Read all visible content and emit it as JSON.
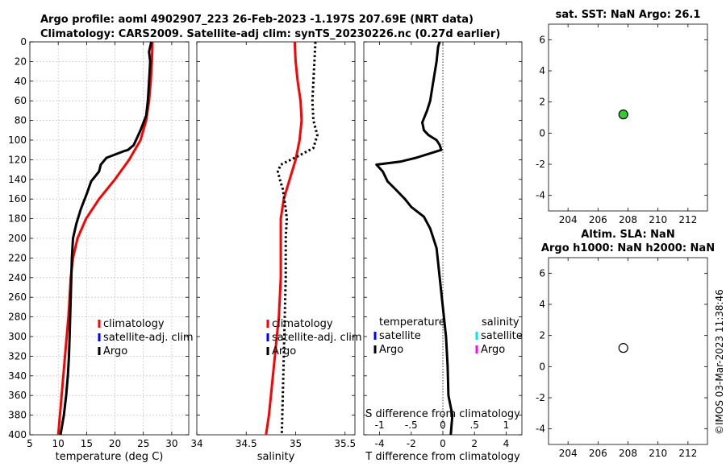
{
  "header": {
    "title_line1": "Argo profile: aoml 4902907_223 26-Feb-2023 -1.197S 207.69E (NRT data)",
    "title_line2": "Climatology: CARS2009. Satellite-adj clim: synTS_20230226.nc (0.27d earlier)"
  },
  "timestamp": "©IMOS 03-Mar-2023 11:38:46",
  "colors": {
    "climatology": "#ff0000",
    "satellite": "#0000ff",
    "argo": "#000000",
    "sat_salinity": "#00e5e5",
    "argo_salinity": "#ff00ff",
    "sst_marker": "#33cc33"
  },
  "chart_data": [
    {
      "type": "line",
      "id": "temperature",
      "xlabel": "temperature (deg C)",
      "xlim": [
        5,
        33
      ],
      "ylim": [
        0,
        400
      ],
      "xticks": [
        5,
        10,
        15,
        20,
        25,
        30
      ],
      "yticks": [
        0,
        20,
        40,
        60,
        80,
        100,
        120,
        140,
        160,
        180,
        200,
        220,
        240,
        260,
        280,
        300,
        320,
        340,
        360,
        380,
        400
      ],
      "legend": [
        "climatology",
        "satellite-adj. clim",
        "Argo"
      ],
      "series": [
        {
          "name": "climatology",
          "style": "solid",
          "color": "#ff0000",
          "points": [
            [
              26.6,
              0
            ],
            [
              26.5,
              20
            ],
            [
              26.3,
              40
            ],
            [
              26.0,
              60
            ],
            [
              25.5,
              80
            ],
            [
              24.5,
              100
            ],
            [
              22.5,
              120
            ],
            [
              20.0,
              140
            ],
            [
              17.2,
              160
            ],
            [
              14.9,
              180
            ],
            [
              13.4,
              200
            ],
            [
              12.6,
              220
            ],
            [
              12.2,
              240
            ],
            [
              12.0,
              260
            ],
            [
              11.8,
              280
            ],
            [
              11.5,
              300
            ],
            [
              11.2,
              320
            ],
            [
              10.9,
              340
            ],
            [
              10.6,
              360
            ],
            [
              10.3,
              380
            ],
            [
              10.0,
              400
            ]
          ]
        },
        {
          "name": "Argo",
          "style": "solid",
          "color": "#000000",
          "points": [
            [
              26.4,
              0
            ],
            [
              26.0,
              10
            ],
            [
              26.2,
              20
            ],
            [
              26.0,
              40
            ],
            [
              25.8,
              60
            ],
            [
              25.5,
              75
            ],
            [
              24.5,
              90
            ],
            [
              23.3,
              105
            ],
            [
              22.3,
              110
            ],
            [
              21.7,
              111
            ],
            [
              18.5,
              118
            ],
            [
              17.5,
              125
            ],
            [
              17.2,
              132
            ],
            [
              15.8,
              142
            ],
            [
              15.0,
              155
            ],
            [
              14.0,
              170
            ],
            [
              13.2,
              185
            ],
            [
              12.6,
              200
            ],
            [
              12.4,
              220
            ],
            [
              12.3,
              240
            ],
            [
              12.2,
              260
            ],
            [
              12.1,
              280
            ],
            [
              12.0,
              300
            ],
            [
              11.9,
              320
            ],
            [
              11.7,
              340
            ],
            [
              11.4,
              360
            ],
            [
              11.0,
              380
            ],
            [
              10.4,
              400
            ]
          ]
        }
      ]
    },
    {
      "type": "line",
      "id": "salinity",
      "xlabel": "salinity",
      "xlim": [
        34,
        35.6
      ],
      "ylim": [
        0,
        400
      ],
      "xticks": [
        34,
        34.5,
        35,
        35.5
      ],
      "legend": [
        "climatology",
        "satellite-adj. clim",
        "Argo"
      ],
      "series": [
        {
          "name": "climatology",
          "style": "solid",
          "color": "#ff0000",
          "points": [
            [
              34.99,
              0
            ],
            [
              35.0,
              20
            ],
            [
              35.02,
              40
            ],
            [
              35.05,
              60
            ],
            [
              35.06,
              80
            ],
            [
              35.04,
              100
            ],
            [
              35.0,
              120
            ],
            [
              34.94,
              140
            ],
            [
              34.88,
              160
            ],
            [
              34.85,
              180
            ],
            [
              34.85,
              200
            ],
            [
              34.85,
              220
            ],
            [
              34.85,
              240
            ],
            [
              34.84,
              260
            ],
            [
              34.83,
              280
            ],
            [
              34.81,
              300
            ],
            [
              34.79,
              320
            ],
            [
              34.77,
              340
            ],
            [
              34.75,
              360
            ],
            [
              34.73,
              380
            ],
            [
              34.7,
              400
            ]
          ]
        },
        {
          "name": "Argo",
          "style": "dotted",
          "color": "#000000",
          "points": [
            [
              35.2,
              0
            ],
            [
              35.19,
              20
            ],
            [
              35.18,
              40
            ],
            [
              35.17,
              60
            ],
            [
              35.18,
              80
            ],
            [
              35.22,
              95
            ],
            [
              35.18,
              108
            ],
            [
              35.05,
              115
            ],
            [
              34.95,
              120
            ],
            [
              34.85,
              125
            ],
            [
              34.82,
              132
            ],
            [
              34.84,
              140
            ],
            [
              34.87,
              150
            ],
            [
              34.9,
              170
            ],
            [
              34.91,
              180
            ],
            [
              34.9,
              200
            ],
            [
              34.9,
              240
            ],
            [
              34.89,
              280
            ],
            [
              34.88,
              320
            ],
            [
              34.87,
              360
            ],
            [
              34.86,
              400
            ]
          ]
        }
      ]
    },
    {
      "type": "line",
      "id": "difference",
      "xlabel": "T difference from climatology",
      "xlabel_top": "S difference from climatology",
      "xlim": [
        -5,
        5
      ],
      "ylim": [
        0,
        400
      ],
      "xticks": [
        -4,
        -2,
        0,
        2,
        4
      ],
      "xticks_top": [
        -1,
        -0.5,
        0,
        0.5,
        1
      ],
      "legend_left_title": "temperature",
      "legend_left": [
        "satellite",
        "Argo"
      ],
      "legend_right_title": "salinity",
      "legend_right": [
        "satellite",
        "Argo"
      ],
      "series": [
        {
          "name": "Argo",
          "style": "solid",
          "color": "#000000",
          "points": [
            [
              -0.2,
              0
            ],
            [
              -0.3,
              5
            ],
            [
              -0.4,
              20
            ],
            [
              -0.6,
              40
            ],
            [
              -0.8,
              60
            ],
            [
              -1.0,
              70
            ],
            [
              -1.3,
              82
            ],
            [
              -1.2,
              90
            ],
            [
              -0.9,
              95
            ],
            [
              -0.4,
              100
            ],
            [
              -0.2,
              105
            ],
            [
              -0.1,
              110
            ],
            [
              -1.7,
              118
            ],
            [
              -2.7,
              122
            ],
            [
              -4.2,
              125
            ],
            [
              -3.8,
              132
            ],
            [
              -3.5,
              142
            ],
            [
              -3.0,
              150
            ],
            [
              -2.4,
              160
            ],
            [
              -2.0,
              168
            ],
            [
              -1.2,
              178
            ],
            [
              -0.8,
              190
            ],
            [
              -0.4,
              210
            ],
            [
              -0.2,
              240
            ],
            [
              0.0,
              270
            ],
            [
              0.2,
              300
            ],
            [
              0.3,
              330
            ],
            [
              0.35,
              360
            ],
            [
              0.6,
              380
            ],
            [
              0.5,
              400
            ]
          ]
        }
      ]
    },
    {
      "type": "scatter",
      "id": "sst",
      "title": "sat. SST: NaN Argo: 26.1",
      "xlim": [
        202.7,
        213.3
      ],
      "ylim": [
        -5,
        7
      ],
      "xticks": [
        204,
        206,
        208,
        210,
        212
      ],
      "yticks": [
        -4,
        -2,
        0,
        2,
        4,
        6
      ],
      "points": [
        {
          "x": 207.69,
          "y": 1.2,
          "fill": "#33cc33"
        }
      ]
    },
    {
      "type": "scatter",
      "id": "sla",
      "title_line1": "Altim. SLA: NaN",
      "title_line2": "Argo h1000: NaN h2000: NaN",
      "xlim": [
        202.7,
        213.3
      ],
      "ylim": [
        -5,
        7
      ],
      "xticks": [
        204,
        206,
        208,
        210,
        212
      ],
      "yticks": [
        -4,
        -2,
        0,
        2,
        4,
        6
      ],
      "points": [
        {
          "x": 207.69,
          "y": 1.2,
          "fill": "#ffffff"
        }
      ]
    }
  ]
}
